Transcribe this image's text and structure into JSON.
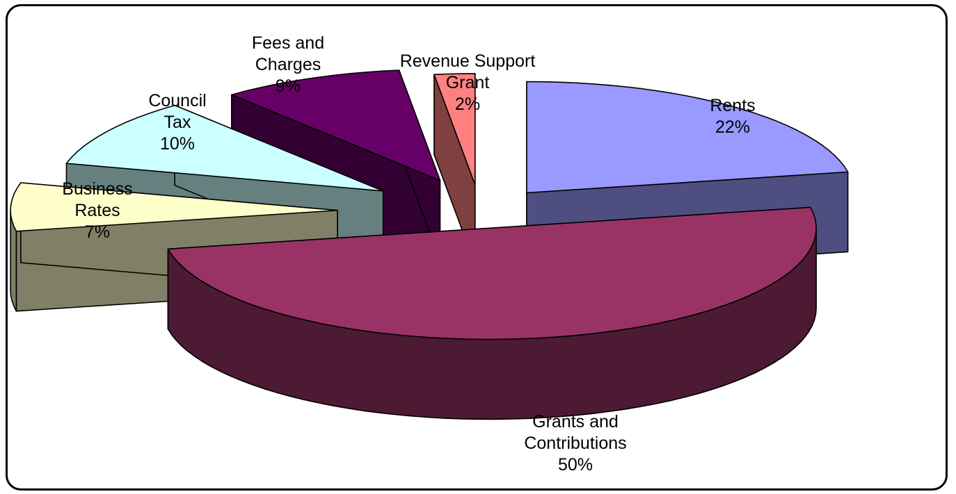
{
  "chart_data": {
    "type": "pie",
    "style": "3d-exploded",
    "title": "",
    "slices": [
      {
        "label": "Rents",
        "value": 22,
        "pct_label": "22%",
        "color": "#9999ff",
        "side": "#4e4e80"
      },
      {
        "label": "Grants and Contributions",
        "value": 50,
        "pct_label": "50%",
        "color": "#993366",
        "side": "#4d1a33"
      },
      {
        "label": "Business Rates",
        "value": 7,
        "pct_label": "7%",
        "color": "#ffffcc",
        "side": "#808066"
      },
      {
        "label": "Council Tax",
        "value": 10,
        "pct_label": "10%",
        "color": "#ccffff",
        "side": "#668080"
      },
      {
        "label": "Fees and Charges",
        "value": 9,
        "pct_label": "9%",
        "color": "#660066",
        "side": "#330033"
      },
      {
        "label": "Revenue Support Grant",
        "value": 2,
        "pct_label": "2%",
        "color": "#ff8080",
        "side": "#804040"
      }
    ],
    "label_lines": {
      "Rents": [
        "Rents",
        "22%"
      ],
      "Grants and Contributions": [
        "Grants and",
        "Contributions",
        "50%"
      ],
      "Business Rates": [
        "Business",
        "Rates",
        "7%"
      ],
      "Council Tax": [
        "Council",
        "Tax",
        "10%"
      ],
      "Fees and Charges": [
        "Fees and",
        "Charges",
        "9%"
      ],
      "Revenue Support Grant": [
        "Revenue Support",
        "Grant",
        "2%"
      ]
    }
  }
}
